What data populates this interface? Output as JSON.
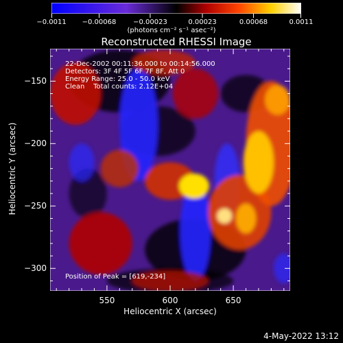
{
  "chart_data": {
    "type": "heatmap",
    "title": "Reconstructed RHESSI Image",
    "xlabel": "Heliocentric X (arcsec)",
    "ylabel": "Heliocentric Y (arcsec)",
    "xlim": [
      505,
      695
    ],
    "ylim": [
      -318,
      -124
    ],
    "x_ticks": [
      550,
      600,
      650
    ],
    "x_tick_labels": [
      "550",
      "600",
      "650"
    ],
    "y_ticks": [
      -150,
      -200,
      -250,
      -300
    ],
    "y_tick_labels": [
      "−150",
      "−200",
      "−250",
      "−300"
    ],
    "colorbar": {
      "range": [
        -0.0011,
        0.0011
      ],
      "tick_values": [
        -0.0011,
        -0.00068,
        -0.00023,
        0.00023,
        0.00068,
        0.0011
      ],
      "tick_labels": [
        "−0.0011",
        "−0.00068",
        "−0.00023",
        "0.00023",
        "0.00068",
        "0.0011"
      ],
      "units": "(photons cm⁻² s⁻¹ asec⁻²)",
      "colors": [
        "#0000ff",
        "#6a2bd9",
        "#000000",
        "#b00000",
        "#ff4400",
        "#ffd000",
        "#ffffff"
      ]
    },
    "peak_position": [
      619,
      -234
    ],
    "annotations": {
      "time": "22-Dec-2002 00:11:36.000 to 00:14:56.000",
      "detectors": "Detectors: 3F 4F 5F 6F 7F 8F, Att 0",
      "energy": "Energy Range: 25.0 - 50.0 keV",
      "clean": "Clean    Total counts: 2.12E+04",
      "peak": "Position of Peak = [619,-234]"
    }
  },
  "footer": {
    "date": "4-May-2022 13:12"
  }
}
